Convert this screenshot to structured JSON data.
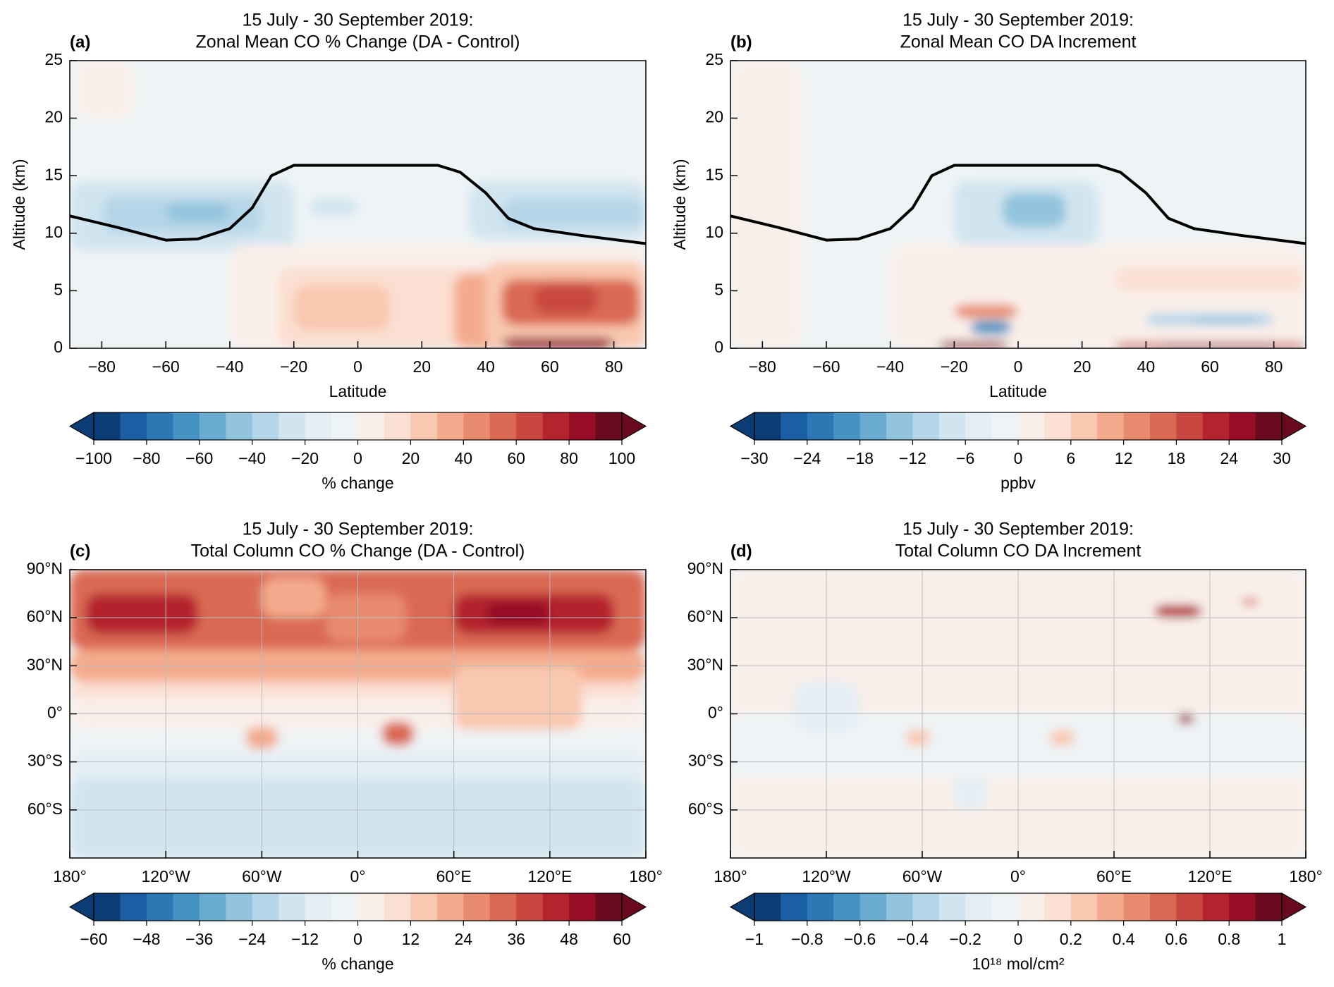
{
  "chart_data": [
    {
      "type": "contour",
      "panel_label": "(a)",
      "title": [
        "15 July - 30 September 2019:",
        "Zonal Mean CO % Change (DA - Control)"
      ],
      "xlabel": "Latitude",
      "ylabel": "Altitude (km)",
      "xlim": [
        -90,
        90
      ],
      "xticks": [
        {
          "value": -80,
          "label": "−80"
        },
        {
          "value": -60,
          "label": "−60"
        },
        {
          "value": -40,
          "label": "−40"
        },
        {
          "value": -20,
          "label": "−20"
        },
        0,
        20,
        40,
        60,
        80
      ],
      "ylim": [
        0,
        25
      ],
      "yticks": [
        0,
        5,
        10,
        15,
        20,
        25
      ],
      "colorbar_label": "% change",
      "clim": [
        -100,
        100
      ],
      "cticks": [
        {
          "value": -100,
          "label": "−100"
        },
        {
          "value": -80,
          "label": "−80"
        },
        {
          "value": -60,
          "label": "−60"
        },
        {
          "value": -40,
          "label": "−40"
        },
        {
          "value": -20,
          "label": "−20"
        },
        0,
        20,
        40,
        60,
        80,
        100
      ],
      "colors": [
        "#0b3c73",
        "#1a5fa3",
        "#2c78b5",
        "#4592c4",
        "#6aabd2",
        "#93c4de",
        "#b5d6e8",
        "#d1e5f0",
        "#e4eef4",
        "#eef3f5",
        "#f9efea",
        "#fbdfd2",
        "#f9c8b0",
        "#f4ab8d",
        "#e88b6e",
        "#da6953",
        "#c94741",
        "#b4242f",
        "#970d26",
        "#6a0a1e"
      ]
    },
    {
      "type": "contour",
      "panel_label": "(b)",
      "title": [
        "15 July - 30 September 2019:",
        "Zonal Mean CO DA Increment"
      ],
      "xlabel": "Latitude",
      "ylabel": "Altitude (km)",
      "xlim": [
        -90,
        90
      ],
      "xticks": [
        {
          "value": -80,
          "label": "−80"
        },
        {
          "value": -60,
          "label": "−60"
        },
        {
          "value": -40,
          "label": "−40"
        },
        {
          "value": -20,
          "label": "−20"
        },
        0,
        20,
        40,
        60,
        80
      ],
      "ylim": [
        0,
        25
      ],
      "yticks": [
        0,
        5,
        10,
        15,
        20,
        25
      ],
      "colorbar_label": "ppbv",
      "clim": [
        -30,
        30
      ],
      "cticks": [
        {
          "value": -30,
          "label": "−30"
        },
        {
          "value": -24,
          "label": "−24"
        },
        {
          "value": -18,
          "label": "−18"
        },
        {
          "value": -12,
          "label": "−12"
        },
        {
          "value": -6,
          "label": "−6"
        },
        0,
        6,
        12,
        18,
        24,
        30
      ],
      "colors": [
        "#0b3c73",
        "#1a5fa3",
        "#2c78b5",
        "#4592c4",
        "#6aabd2",
        "#93c4de",
        "#b5d6e8",
        "#d1e5f0",
        "#e4eef4",
        "#eef3f5",
        "#f9efea",
        "#fbdfd2",
        "#f9c8b0",
        "#f4ab8d",
        "#e88b6e",
        "#da6953",
        "#c94741",
        "#b4242f",
        "#970d26",
        "#6a0a1e"
      ]
    },
    {
      "type": "map",
      "panel_label": "(c)",
      "title": [
        "15 July - 30 September 2019:",
        "Total Column CO % Change (DA - Control)"
      ],
      "grid": true,
      "xlim": [
        -180,
        180
      ],
      "xticks": [
        {
          "value": -180,
          "label": "180°"
        },
        {
          "value": -120,
          "label": "120°W"
        },
        {
          "value": -60,
          "label": "60°W"
        },
        {
          "value": 0,
          "label": "0°"
        },
        {
          "value": 60,
          "label": "60°E"
        },
        {
          "value": 120,
          "label": "120°E"
        },
        {
          "value": 180,
          "label": "180°"
        }
      ],
      "ylim": [
        -90,
        90
      ],
      "yticks": [
        {
          "value": 90,
          "label": "90°N"
        },
        {
          "value": 60,
          "label": "60°N"
        },
        {
          "value": 30,
          "label": "30°N"
        },
        {
          "value": 0,
          "label": "0°"
        },
        {
          "value": -30,
          "label": "30°S"
        },
        {
          "value": -60,
          "label": "60°S"
        }
      ],
      "colorbar_label": "% change",
      "clim": [
        -60,
        60
      ],
      "cticks": [
        {
          "value": -60,
          "label": "−60"
        },
        {
          "value": -48,
          "label": "−48"
        },
        {
          "value": -36,
          "label": "−36"
        },
        {
          "value": -24,
          "label": "−24"
        },
        {
          "value": -12,
          "label": "−12"
        },
        0,
        12,
        24,
        36,
        48,
        60
      ],
      "colors": [
        "#0b3c73",
        "#1a5fa3",
        "#2c78b5",
        "#4592c4",
        "#6aabd2",
        "#93c4de",
        "#b5d6e8",
        "#d1e5f0",
        "#e4eef4",
        "#eef3f5",
        "#f9efea",
        "#fbdfd2",
        "#f9c8b0",
        "#f4ab8d",
        "#e88b6e",
        "#da6953",
        "#c94741",
        "#b4242f",
        "#970d26",
        "#6a0a1e"
      ]
    },
    {
      "type": "map",
      "panel_label": "(d)",
      "title": [
        "15 July - 30 September 2019:",
        "Total Column CO DA Increment"
      ],
      "grid": true,
      "xlim": [
        -180,
        180
      ],
      "xticks": [
        {
          "value": -180,
          "label": "180°"
        },
        {
          "value": -120,
          "label": "120°W"
        },
        {
          "value": -60,
          "label": "60°W"
        },
        {
          "value": 0,
          "label": "0°"
        },
        {
          "value": 60,
          "label": "60°E"
        },
        {
          "value": 120,
          "label": "120°E"
        },
        {
          "value": 180,
          "label": "180°"
        }
      ],
      "ylim": [
        -90,
        90
      ],
      "yticks": [
        {
          "value": 90,
          "label": "90°N"
        },
        {
          "value": 60,
          "label": "60°N"
        },
        {
          "value": 30,
          "label": "30°N"
        },
        {
          "value": 0,
          "label": "0°"
        },
        {
          "value": -30,
          "label": "30°S"
        },
        {
          "value": -60,
          "label": "60°S"
        }
      ],
      "colorbar_label": "10¹⁸ mol/cm²",
      "clim": [
        -1,
        1
      ],
      "cticks": [
        {
          "value": -1,
          "label": "−1"
        },
        {
          "value": -0.8,
          "label": "−0.8"
        },
        {
          "value": -0.6,
          "label": "−0.6"
        },
        {
          "value": -0.4,
          "label": "−0.4"
        },
        {
          "value": -0.2,
          "label": "−0.2"
        },
        0,
        0.2,
        0.4,
        0.6,
        0.8,
        1
      ],
      "colors": [
        "#0b3c73",
        "#1a5fa3",
        "#2c78b5",
        "#4592c4",
        "#6aabd2",
        "#93c4de",
        "#b5d6e8",
        "#d1e5f0",
        "#e4eef4",
        "#eef3f5",
        "#f9efea",
        "#fbdfd2",
        "#f9c8b0",
        "#f4ab8d",
        "#e88b6e",
        "#da6953",
        "#c94741",
        "#b4242f",
        "#970d26",
        "#6a0a1e"
      ]
    }
  ]
}
